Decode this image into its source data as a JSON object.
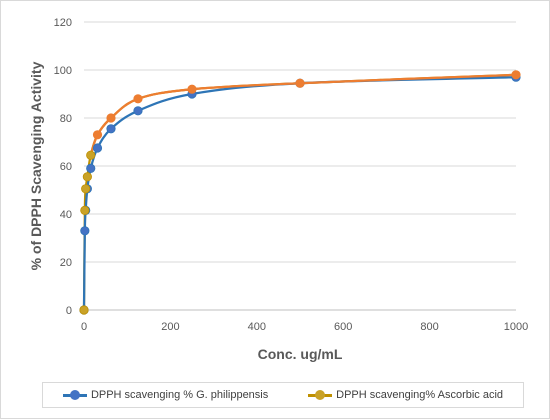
{
  "chart_data": {
    "type": "scatter",
    "title": "",
    "xlabel": "Conc. ug/mL",
    "ylabel": "% of DPPH Scavenging Activity",
    "xlim": [
      0,
      1000
    ],
    "ylim": [
      0,
      120
    ],
    "xticks": [
      "0",
      "200",
      "400",
      "600",
      "800",
      "1000"
    ],
    "yticks": [
      "0",
      "20",
      "40",
      "60",
      "80",
      "100",
      "120"
    ],
    "grid": "horizontal",
    "legend_position": "bottom",
    "series": [
      {
        "name": "DPPH scavenging % G. philippensis",
        "line_color": "#2e75b6",
        "marker_color": "#4472c4",
        "smooth": true,
        "x": [
          0,
          1.95,
          3.9,
          7.8,
          15.6,
          31.25,
          62.5,
          125,
          250,
          500,
          1000
        ],
        "y": [
          0,
          33,
          41.5,
          50.5,
          59,
          67.5,
          75.5,
          83,
          90,
          94.5,
          97
        ]
      },
      {
        "name": "DPPH scavenging% Ascorbic acid",
        "line_color": "#bf9000",
        "marker_color": "#c9a227",
        "overlay_color": "#ed7d31",
        "smooth": true,
        "x": [
          0,
          1.95,
          3.9,
          7.8,
          15.6,
          31.25,
          62.5,
          125,
          250,
          500,
          1000
        ],
        "y": [
          0,
          41.5,
          50.5,
          55.5,
          64.5,
          73,
          80,
          88,
          92,
          94.5,
          98
        ]
      }
    ]
  }
}
